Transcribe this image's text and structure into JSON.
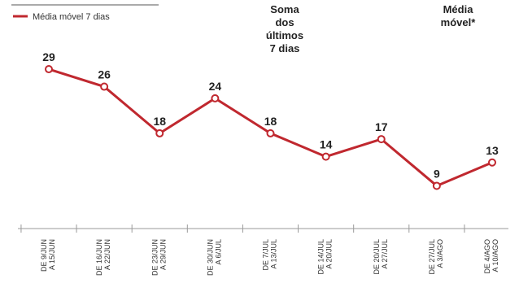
{
  "legend": {
    "label": "Média móvel 7 dias"
  },
  "header": {
    "sum_lines": [
      "Soma",
      "dos",
      "últimos",
      "7 dias"
    ],
    "avg_lines": [
      "Média",
      "móvel*"
    ]
  },
  "colors": {
    "line": "#c0282f",
    "marker_fill": "#ffffff",
    "axis": "#9a9a9a",
    "text": "#222222"
  },
  "chart_data": {
    "type": "line",
    "ylim": [
      0,
      35
    ],
    "categories": [
      [
        "DE 9/JUN",
        "A 15/JUN"
      ],
      [
        "DE 16/JUN",
        "A 22/JUN"
      ],
      [
        "DE 23/JUN",
        "A 29/JUN"
      ],
      [
        "DE 30/JUN",
        "A 6/JUL"
      ],
      [
        "DE 7/JUL",
        "A 13/JUL"
      ],
      [
        "DE 14/JUL",
        "A 20/JUL"
      ],
      [
        "DE 20/JUL",
        "A 27/JUL"
      ],
      [
        "DE 27/JUL",
        "A 3/AGO"
      ],
      [
        "DE 4/AGO",
        "A 10/AGO"
      ]
    ],
    "series": [
      {
        "name": "Média móvel 7 dias",
        "values": [
          29,
          26,
          18,
          24,
          18,
          14,
          17,
          9,
          13
        ],
        "labels": [
          "29",
          "26",
          "18",
          "24",
          "18",
          "14",
          "17",
          "9",
          "13"
        ]
      }
    ],
    "legend_position": "top-left",
    "grid": false
  }
}
